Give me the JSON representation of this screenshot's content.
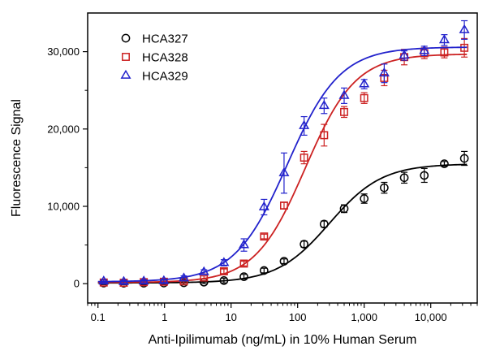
{
  "chart_data": {
    "type": "scatter",
    "title": "",
    "xlabel": "Anti-Ipilimumab (ng/mL) in 10% Human Serum",
    "ylabel": "Fluorescence Signal",
    "x_scale": "log",
    "xlim": [
      0.07,
      50000
    ],
    "ylim": [
      -2500,
      35000
    ],
    "x_ticks": [
      0.1,
      1,
      10,
      100,
      1000,
      10000
    ],
    "x_tick_labels": [
      "0.1",
      "1",
      "10",
      "100",
      "1,000",
      "10,000"
    ],
    "y_ticks": [
      0,
      10000,
      20000,
      30000
    ],
    "y_tick_labels": [
      "0",
      "10,000",
      "20,000",
      "30,000"
    ],
    "legend_position": "top-left",
    "grid": false,
    "series": [
      {
        "name": "HCA327",
        "marker": "circle",
        "color": "#000000",
        "x": [
          0.122,
          0.244,
          0.488,
          0.977,
          1.95,
          3.91,
          7.81,
          15.6,
          31.3,
          62.5,
          125,
          250,
          500,
          1000,
          2000,
          4000,
          8000,
          16000,
          32000
        ],
        "y": [
          80,
          60,
          70,
          90,
          120,
          200,
          400,
          900,
          1700,
          2900,
          5100,
          7700,
          9700,
          11000,
          12400,
          13700,
          14000,
          15500,
          16200
        ],
        "err": [
          200,
          200,
          200,
          200,
          200,
          200,
          300,
          300,
          300,
          300,
          400,
          400,
          500,
          600,
          700,
          700,
          900,
          300,
          900
        ],
        "fit": {
          "bottom": 100,
          "top": 15500,
          "ec50": 300,
          "hill": 1.1
        }
      },
      {
        "name": "HCA328",
        "marker": "square",
        "color": "#cc2222",
        "x": [
          0.122,
          0.244,
          0.488,
          0.977,
          1.95,
          3.91,
          7.81,
          15.6,
          31.3,
          62.5,
          125,
          250,
          500,
          1000,
          2000,
          4000,
          8000,
          16000,
          32000
        ],
        "y": [
          150,
          120,
          200,
          250,
          300,
          800,
          1600,
          2600,
          6100,
          10100,
          16300,
          19200,
          22200,
          24000,
          26600,
          29300,
          29800,
          29900,
          30500
        ],
        "err": [
          200,
          200,
          200,
          200,
          200,
          200,
          300,
          300,
          300,
          400,
          800,
          1400,
          700,
          700,
          1000,
          1000,
          700,
          700,
          1200
        ],
        "fit": {
          "bottom": 150,
          "top": 29700,
          "ec50": 130,
          "hill": 1.15
        }
      },
      {
        "name": "HCA329",
        "marker": "triangle",
        "color": "#2222cc",
        "x": [
          0.122,
          0.244,
          0.488,
          0.977,
          1.95,
          3.91,
          7.81,
          15.6,
          31.3,
          62.5,
          125,
          250,
          500,
          1000,
          2000,
          4000,
          8000,
          16000,
          32000
        ],
        "y": [
          300,
          250,
          300,
          350,
          700,
          1500,
          2700,
          5000,
          9900,
          14300,
          20400,
          23000,
          24300,
          25800,
          27200,
          29500,
          30100,
          31500,
          32800
        ],
        "err": [
          200,
          200,
          200,
          200,
          300,
          300,
          400,
          800,
          1000,
          2600,
          1200,
          1000,
          1000,
          600,
          1200,
          600,
          600,
          700,
          1200
        ],
        "fit": {
          "bottom": 250,
          "top": 30600,
          "ec50": 70,
          "hill": 1.1
        }
      }
    ]
  }
}
